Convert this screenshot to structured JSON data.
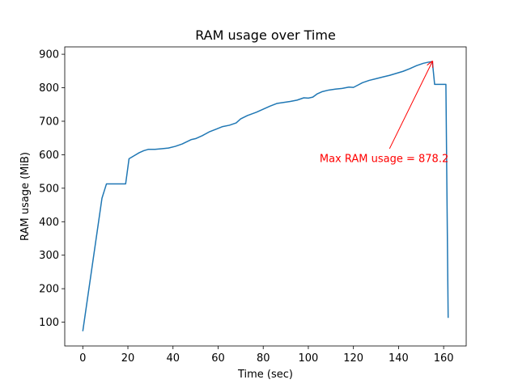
{
  "chart_data": {
    "type": "line",
    "title": "RAM usage over Time",
    "xlabel": "Time (sec)",
    "ylabel": "RAM usage (MiB)",
    "xlim": [
      -8,
      170
    ],
    "ylim": [
      29,
      922
    ],
    "xticks": [
      0,
      20,
      40,
      60,
      80,
      100,
      120,
      140,
      160
    ],
    "yticks": [
      100,
      200,
      300,
      400,
      500,
      600,
      700,
      800,
      900
    ],
    "grid": false,
    "line_color": "#1f77b4",
    "series": [
      {
        "x": [
          0,
          8.5,
          10.5,
          19,
          20.5,
          23,
          25,
          27,
          29,
          32,
          35,
          38,
          41,
          44,
          48,
          50,
          53,
          56,
          59,
          62,
          65,
          68,
          70,
          73,
          77,
          80,
          83,
          86,
          89,
          92,
          95,
          98,
          100,
          102,
          104,
          106,
          109,
          112,
          115,
          118,
          120,
          122,
          124,
          127,
          130,
          133,
          136,
          139,
          142,
          145,
          148,
          151,
          153,
          155,
          156,
          159,
          161,
          162
        ],
        "values": [
          73,
          470,
          513,
          513,
          588,
          598,
          606,
          612,
          616,
          616,
          618,
          620,
          625,
          632,
          645,
          648,
          657,
          668,
          676,
          684,
          688,
          695,
          707,
          717,
          727,
          736,
          745,
          753,
          756,
          759,
          763,
          770,
          769,
          772,
          782,
          788,
          793,
          796,
          798,
          802,
          801,
          808,
          815,
          822,
          827,
          832,
          837,
          843,
          849,
          857,
          866,
          873,
          876,
          878.2,
          810,
          810,
          810,
          113
        ]
      }
    ],
    "annotation": {
      "text": "Max RAM usage = 878.2",
      "color": "#ff0000",
      "point": [
        155,
        878.2
      ],
      "text_anchor": [
        105,
        578
      ]
    }
  }
}
